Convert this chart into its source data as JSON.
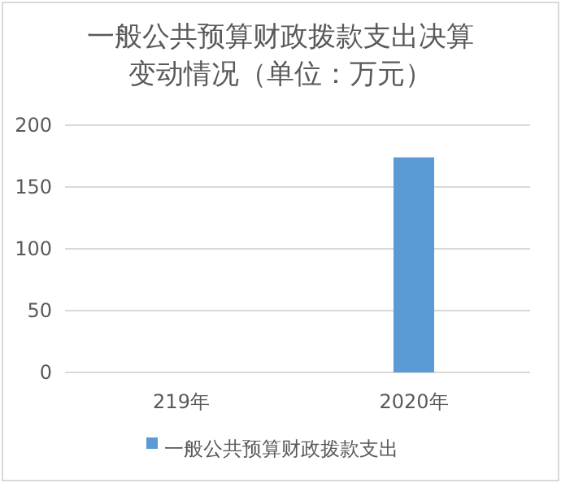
{
  "chart_data": {
    "type": "bar",
    "title": "一般公共预算财政拨款支出决算变动情况（单位：万元）",
    "categories": [
      "219年",
      "2020年"
    ],
    "series": [
      {
        "name": "一般公共预算财政拨款支出",
        "color": "#5b9bd5",
        "values": [
          0,
          174
        ]
      }
    ],
    "ylim": [
      0,
      200
    ],
    "yticks": [
      0,
      50,
      100,
      150,
      200
    ],
    "grid": "y",
    "legend": "bottom"
  }
}
